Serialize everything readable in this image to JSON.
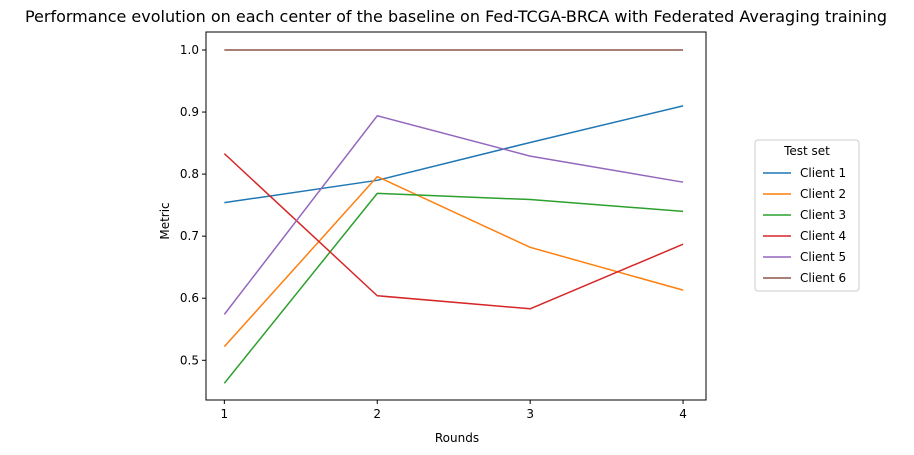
{
  "chart_data": {
    "type": "line",
    "title": "Performance evolution on each center of the baseline on Fed-TCGA-BRCA with Federated Averaging training",
    "xlabel": "Rounds",
    "ylabel": "Metric",
    "x": [
      1,
      2,
      3,
      4
    ],
    "xticks": [
      "1",
      "2",
      "3",
      "4"
    ],
    "yticks": [
      "0.5",
      "0.6",
      "0.7",
      "0.8",
      "0.9",
      "1.0"
    ],
    "xlim": [
      0.88,
      4.15
    ],
    "ylim": [
      0.436,
      1.029
    ],
    "grid": false,
    "legend": {
      "title": "Test set",
      "placement": "right outside"
    },
    "series": [
      {
        "name": "Client 1",
        "color": "#1f77b4",
        "values": [
          0.754,
          0.79,
          0.851,
          0.91
        ]
      },
      {
        "name": "Client 2",
        "color": "#ff7f0e",
        "values": [
          0.522,
          0.796,
          0.682,
          0.613
        ]
      },
      {
        "name": "Client 3",
        "color": "#2ca02c",
        "values": [
          0.463,
          0.769,
          0.759,
          0.74
        ]
      },
      {
        "name": "Client 4",
        "color": "#d62728",
        "values": [
          0.833,
          0.604,
          0.583,
          0.687
        ]
      },
      {
        "name": "Client 5",
        "color": "#9467bd",
        "values": [
          0.574,
          0.894,
          0.829,
          0.787
        ]
      },
      {
        "name": "Client 6",
        "color": "#8c564b",
        "values": [
          1.0,
          1.0,
          1.0,
          1.0
        ]
      }
    ]
  }
}
